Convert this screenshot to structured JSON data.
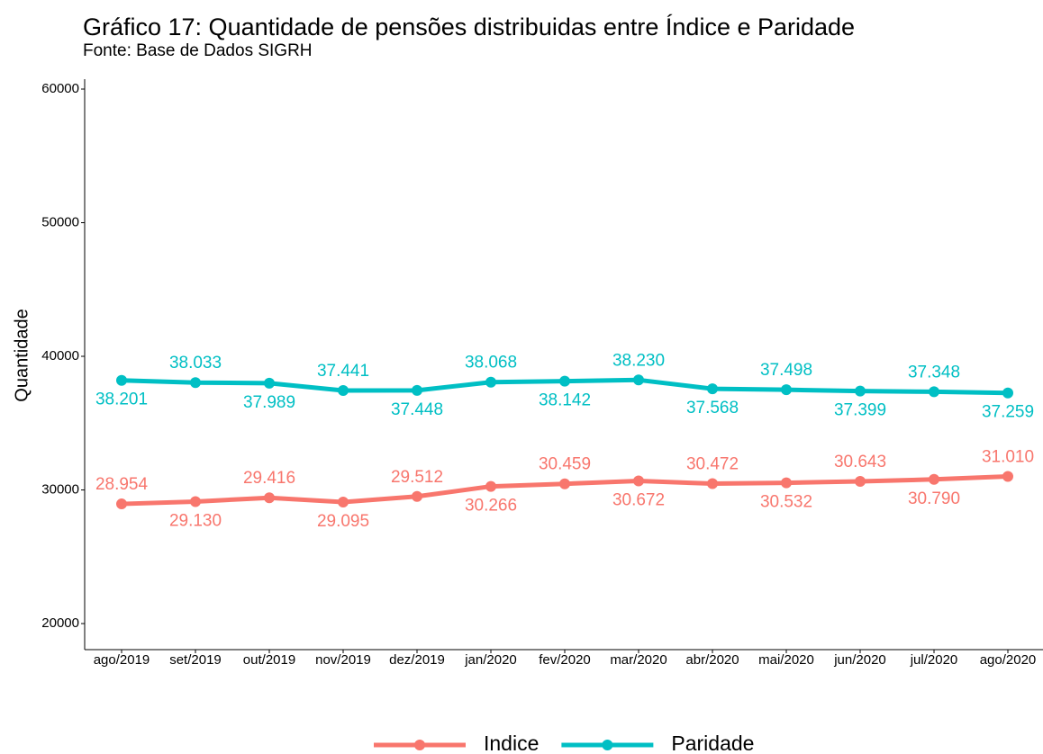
{
  "chart_data": {
    "type": "line",
    "title": "Gráfico 17: Quantidade de pensões distribuidas entre Índice e Paridade",
    "subtitle": "Fonte: Base de Dados SIGRH",
    "y_label": "Quantidade",
    "categories": [
      "ago/2019",
      "set/2019",
      "out/2019",
      "nov/2019",
      "dez/2019",
      "jan/2020",
      "fev/2020",
      "mar/2020",
      "abr/2020",
      "mai/2020",
      "jun/2020",
      "jul/2020",
      "ago/2020"
    ],
    "series": [
      {
        "name": "Indice",
        "color": "#F8766D",
        "values": [
          28954,
          29130,
          29416,
          29095,
          29512,
          30266,
          30459,
          30672,
          30472,
          30532,
          30643,
          30790,
          31010
        ],
        "value_labels": [
          "28.954",
          "29.130",
          "29.416",
          "29.095",
          "29.512",
          "30.266",
          "30.459",
          "30.672",
          "30.472",
          "30.532",
          "30.643",
          "30.790",
          "31.010"
        ]
      },
      {
        "name": "Paridade",
        "color": "#00BFC4",
        "values": [
          38201,
          38033,
          37989,
          37441,
          37448,
          38068,
          38142,
          38230,
          37568,
          37498,
          37399,
          37348,
          37259
        ],
        "value_labels": [
          "38.201",
          "38.033",
          "37.989",
          "37.441",
          "37.448",
          "38.068",
          "38.142",
          "38.230",
          "37.568",
          "37.498",
          "37.399",
          "37.348",
          "37.259"
        ]
      }
    ],
    "ylim": [
      18050,
      60740
    ],
    "yticks": [
      20000,
      30000,
      40000,
      50000,
      60000
    ],
    "legend": "bottom",
    "grid": false
  }
}
